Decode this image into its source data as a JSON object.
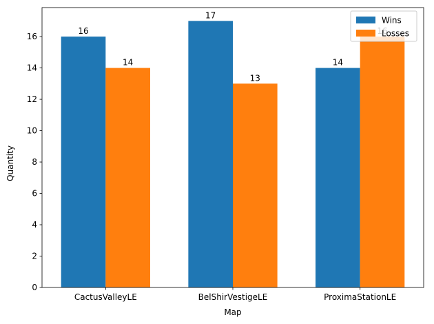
{
  "chart_data": {
    "type": "bar",
    "categories": [
      "CactusValleyLE",
      "BelShirVestigeLE",
      "ProximaStationLE"
    ],
    "series": [
      {
        "name": "Wins",
        "values": [
          16,
          17,
          14
        ],
        "color": "#1f77b4"
      },
      {
        "name": "Losses",
        "values": [
          14,
          13,
          16
        ],
        "color": "#ff7f0e"
      }
    ],
    "xlabel": "Map",
    "ylabel": "Quantity",
    "ylim": [
      0,
      17.85
    ],
    "yticks": [
      0,
      2,
      4,
      6,
      8,
      10,
      12,
      14,
      16
    ],
    "grid": false,
    "legend_position": "upper right",
    "data_labels": true
  }
}
